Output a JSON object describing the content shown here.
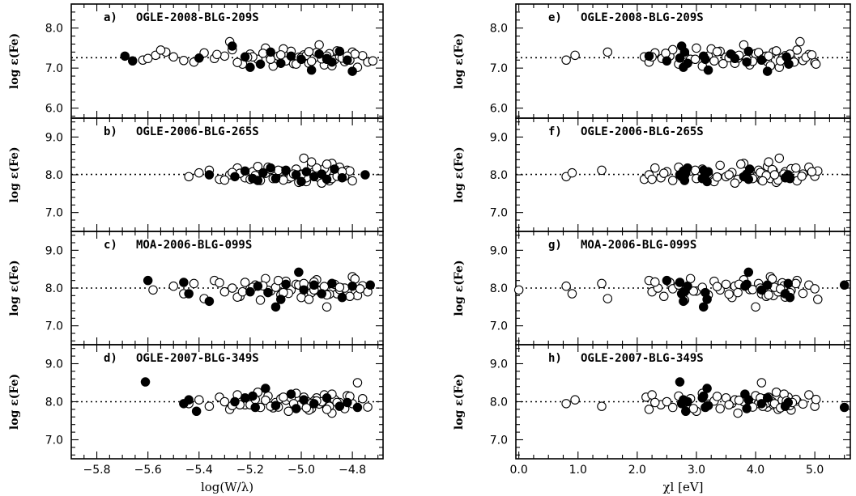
{
  "chart_data": {
    "type": "scatter",
    "left_column": {
      "xlabel": "log(W/λ)",
      "xlim": [
        -5.9,
        -4.68
      ],
      "xticks": [
        "−5.8",
        "−5.6",
        "−5.4",
        "−5.2",
        "−5.0",
        "−4.8"
      ],
      "xtick_values": [
        -5.8,
        -5.6,
        -5.4,
        -5.2,
        -5.0,
        -4.8
      ]
    },
    "right_column": {
      "xlabel": "χl [eV]",
      "xlim": [
        -0.05,
        5.6
      ],
      "xticks": [
        "0.0",
        "1.0",
        "2.0",
        "3.0",
        "4.0",
        "5.0"
      ],
      "xtick_values": [
        0,
        1,
        2,
        3,
        4,
        5
      ]
    },
    "ylabel": "log ε(Fe)",
    "rows": [
      {
        "star": "OGLE-2008-BLG-209S",
        "ylim": [
          5.75,
          8.6
        ],
        "yticks": [
          "6.0",
          "7.0",
          "8.0"
        ],
        "ytick_values": [
          6,
          7,
          8
        ],
        "mean": 7.26,
        "labels": [
          "a)",
          "e)"
        ],
        "open_y": [
          7.2,
          7.32,
          7.4,
          7.28,
          7.15,
          7.38,
          7.24,
          7.3,
          7.46,
          7.1,
          7.35,
          7.22,
          7.5,
          7.05,
          7.3,
          7.18,
          7.42,
          7.27,
          7.33,
          7.12,
          7.25,
          7.58,
          7.08,
          7.36,
          7.21,
          7.29,
          7.16,
          7.4,
          7.02,
          7.31,
          7.24,
          7.45,
          7.19,
          7.34,
          7.14,
          7.28,
          7.37,
          7.22,
          7.48,
          7.11,
          7.26,
          7.32,
          7.17,
          7.39,
          7.23,
          7.3,
          7.06,
          7.43,
          7.25,
          7.2,
          7.35,
          7.15,
          7.66,
          7.27,
          7.33,
          7.1,
          7.41,
          7.22,
          7.3,
          7.18
        ],
        "filled_y": [
          7.3,
          7.18,
          7.25,
          7.55,
          7.02,
          7.4,
          7.12,
          7.3,
          7.22,
          6.95,
          7.35,
          7.24,
          7.15,
          7.42,
          7.2,
          6.92,
          7.28,
          7.1
        ],
        "open_logw": [
          -5.62,
          -5.57,
          -5.53,
          -5.5,
          -5.42,
          -5.38,
          -5.34,
          -5.3,
          -5.27,
          -5.23,
          -5.2,
          -5.17,
          -5.14,
          -5.11,
          -5.09,
          -5.06,
          -5.04,
          -5.01,
          -4.99,
          -4.97,
          -4.95,
          -4.93,
          -4.91,
          -4.89,
          -4.87,
          -4.85,
          -4.83,
          -4.8,
          -4.78,
          -4.76,
          -5.6,
          -5.55,
          -5.46,
          -5.33,
          -5.25,
          -5.19,
          -5.15,
          -5.12,
          -5.07,
          -5.03,
          -5.0,
          -4.98,
          -4.96,
          -4.94,
          -4.92,
          -4.9,
          -4.88,
          -4.86,
          -4.84,
          -4.81,
          -4.79,
          -4.74,
          -5.28,
          -5.21,
          -5.08,
          -5.02,
          -4.97,
          -4.9,
          -4.82,
          -4.72
        ],
        "filled_logw": [
          -5.69,
          -5.66,
          -5.4,
          -5.27,
          -5.2,
          -5.12,
          -5.08,
          -5.04,
          -5.0,
          -4.96,
          -4.93,
          -4.9,
          -4.88,
          -4.85,
          -4.82,
          -4.8,
          -5.22,
          -5.16
        ],
        "open_chi": [
          0.8,
          0.95,
          1.5,
          2.12,
          2.2,
          2.3,
          2.42,
          2.55,
          2.6,
          2.7,
          2.8,
          2.9,
          3.0,
          3.1,
          3.2,
          3.3,
          3.4,
          3.5,
          3.6,
          3.65,
          3.7,
          3.8,
          3.9,
          4.0,
          4.1,
          4.15,
          4.2,
          4.3,
          4.4,
          4.5,
          4.6,
          4.7,
          4.8,
          4.9,
          5.0,
          2.25,
          2.48,
          2.98,
          3.25,
          3.45,
          3.55,
          3.72,
          3.95,
          4.05,
          4.12,
          4.18,
          4.25,
          4.35,
          4.45,
          4.52,
          4.58,
          4.65,
          4.75,
          4.85,
          4.95,
          5.02,
          3.35,
          3.85,
          4.22,
          4.42
        ],
        "filled_chi": [
          2.2,
          2.5,
          2.72,
          2.75,
          2.78,
          2.8,
          2.85,
          3.12,
          3.15,
          3.2,
          3.58,
          3.65,
          3.85,
          3.88,
          4.1,
          4.2,
          4.52,
          4.56
        ]
      },
      {
        "star": "OGLE-2006-BLG-265S",
        "ylim": [
          6.5,
          9.5
        ],
        "yticks": [
          "7.0",
          "8.0",
          "9.0"
        ],
        "ytick_values": [
          7,
          8,
          9
        ],
        "mean": 8.01,
        "labels": [
          "b)",
          "f)"
        ],
        "open_y": [
          7.95,
          8.05,
          8.12,
          7.88,
          8.0,
          8.18,
          7.92,
          8.08,
          7.85,
          8.2,
          7.98,
          8.1,
          7.9,
          8.15,
          8.02,
          7.82,
          8.25,
          7.95,
          8.06,
          7.88,
          8.3,
          8.0,
          7.94,
          8.12,
          7.86,
          8.04,
          8.22,
          7.9,
          8.1,
          7.8,
          8.44,
          7.98,
          8.08,
          7.92,
          8.16,
          7.84,
          8.02,
          8.2,
          7.96,
          8.1,
          7.88,
          8.04,
          8.12,
          7.94,
          8.0,
          7.78,
          8.28,
          7.9,
          8.06,
          7.98,
          8.14,
          7.86,
          8.02,
          7.92,
          8.18,
          7.96,
          8.08,
          7.84,
          8.34,
          8.0
        ],
        "filled_y": [
          8.0,
          7.95,
          8.1,
          7.85,
          8.05,
          8.18,
          7.9,
          8.12,
          8.0,
          7.82,
          8.08,
          7.95,
          8.02,
          7.88,
          8.15,
          7.92,
          8.0,
          7.9
        ],
        "open_logw": [
          -5.44,
          -5.4,
          -5.36,
          -5.32,
          -5.28,
          -5.25,
          -5.22,
          -5.19,
          -5.16,
          -5.13,
          -5.1,
          -5.08,
          -5.05,
          -5.02,
          -5.0,
          -4.98,
          -4.96,
          -4.94,
          -4.92,
          -4.9,
          -4.88,
          -4.86,
          -4.84,
          -4.82,
          -5.3,
          -5.24,
          -5.17,
          -5.11,
          -5.06,
          -5.01,
          -4.99,
          -4.97,
          -4.95,
          -4.93,
          -4.91,
          -4.89,
          -4.87,
          -4.85,
          -4.83,
          -4.81,
          -5.2,
          -5.14,
          -5.09,
          -5.04,
          -4.96,
          -4.92,
          -4.9,
          -4.88,
          -5.27,
          -5.18,
          -5.12,
          -5.07,
          -5.03,
          -4.98,
          -4.94,
          -4.86,
          -4.84,
          -4.8,
          -4.96,
          -5.0
        ],
        "filled_logw": [
          -5.36,
          -5.26,
          -5.22,
          -5.17,
          -5.15,
          -5.12,
          -5.1,
          -5.06,
          -5.02,
          -5.0,
          -4.98,
          -4.95,
          -4.92,
          -4.9,
          -4.87,
          -4.84,
          -4.75,
          -5.19
        ],
        "open_chi": [
          0.8,
          0.9,
          1.4,
          2.12,
          2.2,
          2.3,
          2.4,
          2.5,
          2.6,
          2.7,
          2.8,
          2.9,
          3.0,
          3.1,
          3.2,
          3.3,
          3.4,
          3.5,
          3.6,
          3.7,
          3.8,
          3.9,
          4.0,
          4.05,
          4.1,
          4.15,
          4.2,
          4.25,
          4.3,
          4.35,
          4.4,
          4.45,
          4.5,
          4.55,
          4.6,
          4.7,
          4.8,
          4.9,
          5.0,
          5.05,
          2.25,
          2.45,
          2.98,
          3.35,
          3.55,
          3.65,
          3.75,
          3.95,
          4.08,
          4.18,
          4.28,
          4.38,
          4.48,
          4.58,
          4.68,
          4.78,
          4.95,
          4.12,
          4.22,
          4.32
        ],
        "filled_chi": [
          2.72,
          2.75,
          2.78,
          2.8,
          2.82,
          2.85,
          3.1,
          3.12,
          3.15,
          3.18,
          3.2,
          3.8,
          3.85,
          3.88,
          3.9,
          4.5,
          4.55,
          4.58
        ]
      },
      {
        "star": "MOA-2006-BLG-099S",
        "ylim": [
          6.5,
          9.5
        ],
        "yticks": [
          "7.0",
          "8.0",
          "9.0"
        ],
        "ytick_values": [
          7,
          8,
          9
        ],
        "mean": 8.0,
        "labels": [
          "c)",
          "g)"
        ],
        "open_y": [
          7.95,
          8.05,
          7.85,
          8.12,
          7.72,
          8.2,
          7.9,
          8.0,
          7.78,
          8.15,
          7.98,
          8.08,
          7.68,
          8.25,
          7.92,
          8.02,
          7.82,
          8.18,
          7.95,
          8.1,
          7.75,
          8.05,
          7.88,
          8.22,
          7.96,
          7.5,
          8.12,
          7.85,
          8.0,
          7.92,
          8.3,
          7.8,
          8.06,
          7.9,
          8.14,
          7.76,
          8.02,
          7.94,
          8.2,
          7.86,
          8.08,
          7.98,
          7.7,
          8.16,
          7.92,
          8.04,
          7.84,
          8.1,
          7.96,
          8.0,
          7.78,
          8.24,
          7.9,
          8.06,
          7.88,
          8.12,
          7.95,
          7.82,
          8.02,
          7.98
        ],
        "filled_y": [
          8.2,
          8.15,
          7.85,
          7.65,
          7.9,
          8.05,
          7.88,
          7.5,
          7.7,
          8.1,
          8.42,
          7.95,
          8.08,
          7.85,
          8.12,
          7.75,
          8.05,
          8.08
        ],
        "open_logw": [
          -5.58,
          -5.5,
          -5.46,
          -5.42,
          -5.38,
          -5.34,
          -5.3,
          -5.27,
          -5.24,
          -5.22,
          -5.2,
          -5.18,
          -5.16,
          -5.14,
          -5.12,
          -5.1,
          -5.08,
          -5.06,
          -5.04,
          -5.02,
          -5.0,
          -4.98,
          -4.96,
          -4.94,
          -4.92,
          -4.9,
          -4.88,
          -4.86,
          -4.84,
          -4.82,
          -4.8,
          -4.78,
          -4.76,
          -4.74,
          -5.32,
          -5.25,
          -5.19,
          -5.13,
          -5.09,
          -5.05,
          -5.01,
          -4.99,
          -4.97,
          -4.95,
          -4.93,
          -4.91,
          -4.89,
          -4.87,
          -4.85,
          -4.83,
          -4.81,
          -4.79,
          -5.23,
          -5.15,
          -5.07,
          -4.99,
          -4.95,
          -4.9,
          -4.85,
          -4.77
        ],
        "filled_logw": [
          -5.6,
          -5.46,
          -5.44,
          -5.36,
          -5.2,
          -5.17,
          -5.13,
          -5.1,
          -5.08,
          -5.06,
          -5.01,
          -4.99,
          -4.95,
          -4.92,
          -4.88,
          -4.84,
          -4.8,
          -4.73
        ],
        "open_chi": [
          0.0,
          0.8,
          0.9,
          1.4,
          1.5,
          2.2,
          2.25,
          2.35,
          2.45,
          2.55,
          2.6,
          2.7,
          2.8,
          2.9,
          3.0,
          3.1,
          3.2,
          3.3,
          3.4,
          3.5,
          3.6,
          3.65,
          3.7,
          3.8,
          3.9,
          4.0,
          4.05,
          4.1,
          4.15,
          4.2,
          4.25,
          4.3,
          4.35,
          4.4,
          4.45,
          4.5,
          4.55,
          4.6,
          4.7,
          4.8,
          4.9,
          5.0,
          5.05,
          2.3,
          2.95,
          3.35,
          3.55,
          3.72,
          3.95,
          4.08,
          4.18,
          4.28,
          4.38,
          4.48,
          4.58,
          4.68,
          4.12,
          4.22,
          4.32,
          4.42
        ],
        "filled_chi": [
          2.5,
          2.72,
          2.75,
          2.78,
          2.8,
          2.85,
          3.15,
          3.12,
          3.18,
          3.85,
          3.88,
          4.1,
          4.2,
          4.5,
          4.55,
          4.58,
          3.82,
          5.5
        ]
      },
      {
        "star": "OGLE-2007-BLG-349S",
        "ylim": [
          6.5,
          9.5
        ],
        "yticks": [
          "7.0",
          "8.0",
          "9.0"
        ],
        "ytick_values": [
          7,
          8,
          9
        ],
        "mean": 8.0,
        "labels": [
          "d)",
          "h)"
        ],
        "open_y": [
          7.95,
          8.05,
          7.88,
          8.12,
          7.8,
          8.18,
          7.92,
          8.0,
          7.85,
          8.15,
          7.98,
          8.08,
          7.75,
          8.22,
          7.94,
          8.02,
          7.82,
          8.1,
          7.96,
          8.05,
          7.7,
          8.0,
          7.9,
          8.16,
          7.95,
          8.5,
          8.08,
          7.86,
          8.0,
          7.92,
          8.25,
          7.84,
          8.04,
          7.9,
          8.12,
          7.78,
          8.02,
          7.94,
          8.18,
          7.88,
          8.06,
          7.98,
          7.82,
          8.14,
          7.92,
          8.04,
          7.86,
          8.1,
          7.96,
          8.0,
          7.8,
          8.2,
          7.9,
          8.06,
          7.88,
          8.12,
          7.95,
          7.84,
          8.02,
          7.98
        ],
        "filled_y": [
          8.52,
          7.95,
          8.05,
          7.75,
          8.0,
          8.1,
          8.15,
          7.85,
          8.35,
          7.9,
          8.2,
          7.82,
          8.05,
          7.95,
          8.1,
          7.88,
          7.98,
          7.85
        ],
        "open_logw": [
          -5.44,
          -5.4,
          -5.36,
          -5.32,
          -5.28,
          -5.25,
          -5.22,
          -5.19,
          -5.16,
          -5.13,
          -5.1,
          -5.08,
          -5.05,
          -5.02,
          -5.0,
          -4.98,
          -4.96,
          -4.94,
          -4.92,
          -4.9,
          -4.88,
          -4.86,
          -4.84,
          -4.82,
          -4.8,
          -4.78,
          -4.76,
          -4.74,
          -5.3,
          -5.24,
          -5.17,
          -5.11,
          -5.06,
          -5.01,
          -4.99,
          -4.97,
          -4.95,
          -4.93,
          -4.91,
          -4.89,
          -4.87,
          -4.85,
          -4.83,
          -4.81,
          -5.2,
          -5.14,
          -5.09,
          -5.04,
          -4.96,
          -4.92,
          -4.9,
          -4.88,
          -5.27,
          -5.18,
          -5.12,
          -5.07,
          -5.03,
          -4.98,
          -4.94,
          -4.86
        ],
        "filled_logw": [
          -5.61,
          -5.46,
          -5.44,
          -5.41,
          -5.26,
          -5.22,
          -5.19,
          -5.18,
          -5.14,
          -5.1,
          -5.04,
          -5.02,
          -4.99,
          -4.95,
          -4.9,
          -4.85,
          -4.82,
          -4.78
        ],
        "open_chi": [
          0.8,
          0.95,
          1.4,
          2.15,
          2.2,
          2.25,
          2.4,
          2.5,
          2.6,
          2.7,
          2.8,
          2.9,
          3.0,
          3.1,
          3.2,
          3.3,
          3.4,
          3.5,
          3.6,
          3.65,
          3.7,
          3.8,
          3.9,
          4.0,
          4.05,
          4.1,
          4.15,
          4.2,
          4.25,
          4.3,
          4.35,
          4.4,
          4.45,
          4.5,
          4.55,
          4.6,
          4.7,
          4.8,
          4.9,
          5.0,
          5.02,
          2.3,
          2.95,
          3.35,
          3.55,
          3.72,
          3.95,
          4.08,
          4.18,
          4.28,
          4.38,
          4.48,
          4.58,
          4.68,
          4.12,
          4.22,
          4.32,
          4.42,
          4.52,
          4.62
        ],
        "filled_chi": [
          2.72,
          2.75,
          2.78,
          2.82,
          2.85,
          3.1,
          3.12,
          3.15,
          3.18,
          3.2,
          3.82,
          3.85,
          3.88,
          4.1,
          4.2,
          4.5,
          4.55,
          5.5
        ]
      }
    ]
  }
}
